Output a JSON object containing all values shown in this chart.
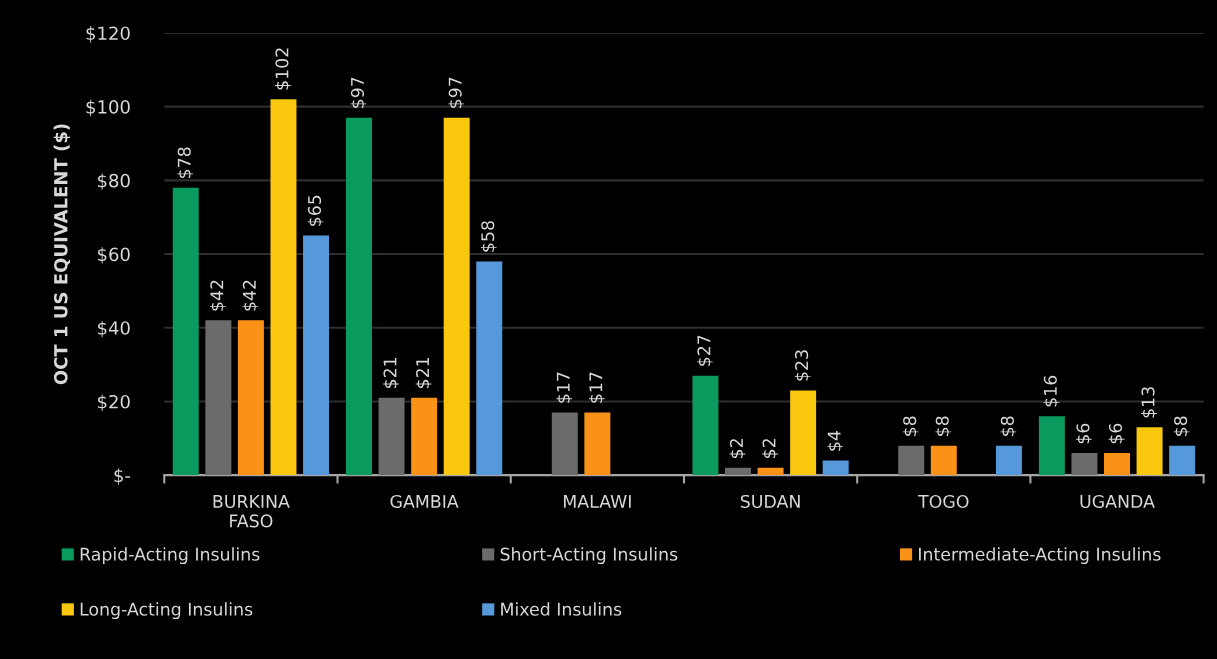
{
  "chart_data": {
    "type": "bar",
    "ylabel": "OCT 1 US EQUIVALENT ($)",
    "categories": [
      "BURKINA FASO",
      "GAMBIA",
      "MALAWI",
      "SUDAN",
      "TOGO",
      "UGANDA"
    ],
    "series": [
      {
        "name": "Rapid-Acting Insulins",
        "color": "#0a9a5e",
        "values": [
          78,
          97,
          null,
          27,
          null,
          16
        ],
        "value_labels": [
          "$78",
          "$97",
          null,
          "$27",
          null,
          "$16"
        ]
      },
      {
        "name": "Short-Acting Insulins",
        "color": "#6b6b6b",
        "values": [
          42,
          21,
          17,
          2,
          8,
          6
        ],
        "value_labels": [
          "$42",
          "$21",
          "$17",
          "$2",
          "$8",
          "$6"
        ]
      },
      {
        "name": "Intermediate-Acting Insulins",
        "color": "#fb9218",
        "values": [
          42,
          21,
          17,
          2,
          8,
          6
        ],
        "value_labels": [
          "$42",
          "$21",
          "$17",
          "$2",
          "$8",
          "$6"
        ]
      },
      {
        "name": "Long-Acting Insulins",
        "color": "#f9c80e",
        "values": [
          102,
          97,
          null,
          23,
          null,
          13
        ],
        "value_labels": [
          "$102",
          "$97",
          null,
          "$23",
          null,
          "$13"
        ]
      },
      {
        "name": "Mixed Insulins",
        "color": "#5699db",
        "values": [
          65,
          58,
          null,
          4,
          8,
          8
        ],
        "value_labels": [
          "$65",
          "$58",
          null,
          "$4",
          "$8",
          "$8"
        ]
      }
    ],
    "ylim": [
      0,
      120
    ],
    "yticks": [
      {
        "value": 0,
        "label": "$-"
      },
      {
        "value": 20,
        "label": "$20"
      },
      {
        "value": 40,
        "label": "$40"
      },
      {
        "value": 60,
        "label": "$60"
      },
      {
        "value": 80,
        "label": "$80"
      },
      {
        "value": 100,
        "label": "$100"
      },
      {
        "value": 120,
        "label": "$120"
      }
    ],
    "grid": "y",
    "legend": "bottom"
  }
}
